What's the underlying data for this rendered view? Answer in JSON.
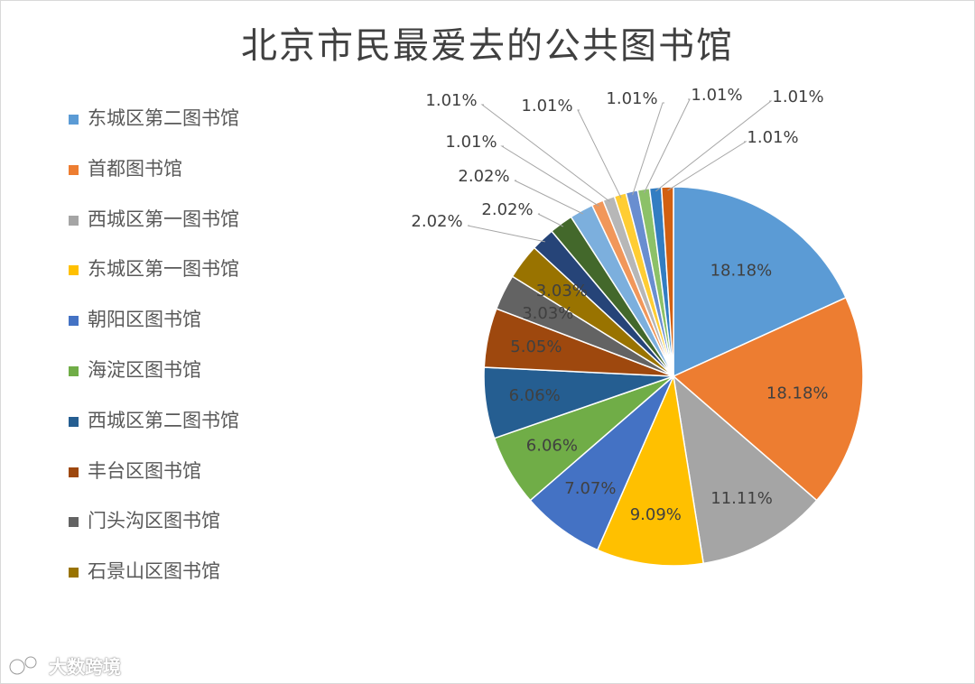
{
  "chart_data": {
    "type": "pie",
    "title": "北京市民最爱去的公共图书馆",
    "legend_position": "left",
    "slices": [
      {
        "label": "东城区第二图书馆",
        "value": 18.18,
        "display": "18.18%",
        "color": "#5b9bd5"
      },
      {
        "label": "首都图书馆",
        "value": 18.18,
        "display": "18.18%",
        "color": "#ed7d31"
      },
      {
        "label": "西城区第一图书馆",
        "value": 11.11,
        "display": "11.11%",
        "color": "#a5a5a5"
      },
      {
        "label": "东城区第一图书馆",
        "value": 9.09,
        "display": "9.09%",
        "color": "#ffc000"
      },
      {
        "label": "朝阳区图书馆",
        "value": 7.07,
        "display": "7.07%",
        "color": "#4472c4"
      },
      {
        "label": "海淀区图书馆",
        "value": 6.06,
        "display": "6.06%",
        "color": "#70ad47"
      },
      {
        "label": "西城区第二图书馆",
        "value": 6.06,
        "display": "6.06%",
        "color": "#255e91"
      },
      {
        "label": "丰台区图书馆",
        "value": 5.05,
        "display": "5.05%",
        "color": "#9e480e"
      },
      {
        "label": "门头沟区图书馆",
        "value": 3.03,
        "display": "3.03%",
        "color": "#636363"
      },
      {
        "label": "石景山区图书馆",
        "value": 3.03,
        "display": "3.03%",
        "color": "#997300"
      },
      {
        "label": "",
        "value": 2.02,
        "display": "2.02%",
        "color": "#264478"
      },
      {
        "label": "",
        "value": 2.02,
        "display": "2.02%",
        "color": "#43682b"
      },
      {
        "label": "",
        "value": 2.02,
        "display": "2.02%",
        "color": "#7cafdd"
      },
      {
        "label": "",
        "value": 1.01,
        "display": "1.01%",
        "color": "#f1975a"
      },
      {
        "label": "",
        "value": 1.01,
        "display": "1.01%",
        "color": "#b7b7b7"
      },
      {
        "label": "",
        "value": 1.01,
        "display": "1.01%",
        "color": "#ffcd33"
      },
      {
        "label": "",
        "value": 1.01,
        "display": "1.01%",
        "color": "#698ed0"
      },
      {
        "label": "",
        "value": 1.01,
        "display": "1.01%",
        "color": "#8cc168"
      },
      {
        "label": "",
        "value": 1.01,
        "display": "1.01%",
        "color": "#327dc2"
      },
      {
        "label": "",
        "value": 1.01,
        "display": "1.01%",
        "color": "#d26012"
      }
    ]
  },
  "watermark": {
    "text": "大数跨境"
  }
}
